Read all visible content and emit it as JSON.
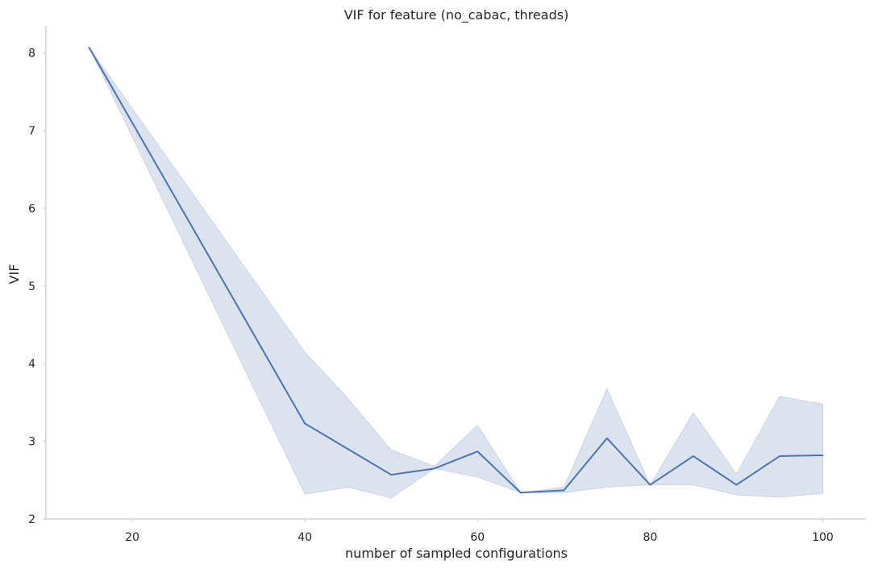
{
  "chart_data": {
    "type": "line",
    "title": "VIF for feature (no_cabac, threads)",
    "xlabel": "number of sampled configurations",
    "ylabel": "VIF",
    "xlim": [
      10,
      105
    ],
    "ylim": [
      2,
      8.35
    ],
    "xticks": [
      20,
      40,
      60,
      80,
      100
    ],
    "yticks": [
      2,
      3,
      4,
      5,
      6,
      7,
      8
    ],
    "grid": false,
    "legend": "none",
    "line_color": "#4c72b0",
    "band_color": "#4c72b0",
    "series": [
      {
        "x": [
          15,
          40,
          45,
          50,
          55,
          60,
          65,
          70,
          75,
          80,
          85,
          90,
          95,
          100
        ],
        "y": [
          8.07,
          3.23,
          2.9,
          2.57,
          2.65,
          2.87,
          2.34,
          2.37,
          3.04,
          2.44,
          2.81,
          2.44,
          2.81,
          2.82
        ],
        "ci_low": [
          8.07,
          2.32,
          2.41,
          2.27,
          2.65,
          2.54,
          2.34,
          2.34,
          2.41,
          2.44,
          2.44,
          2.31,
          2.28,
          2.33
        ],
        "ci_high": [
          8.07,
          4.15,
          3.55,
          2.89,
          2.68,
          3.21,
          2.34,
          2.41,
          3.68,
          2.44,
          3.37,
          2.58,
          3.58,
          3.48
        ]
      }
    ]
  }
}
